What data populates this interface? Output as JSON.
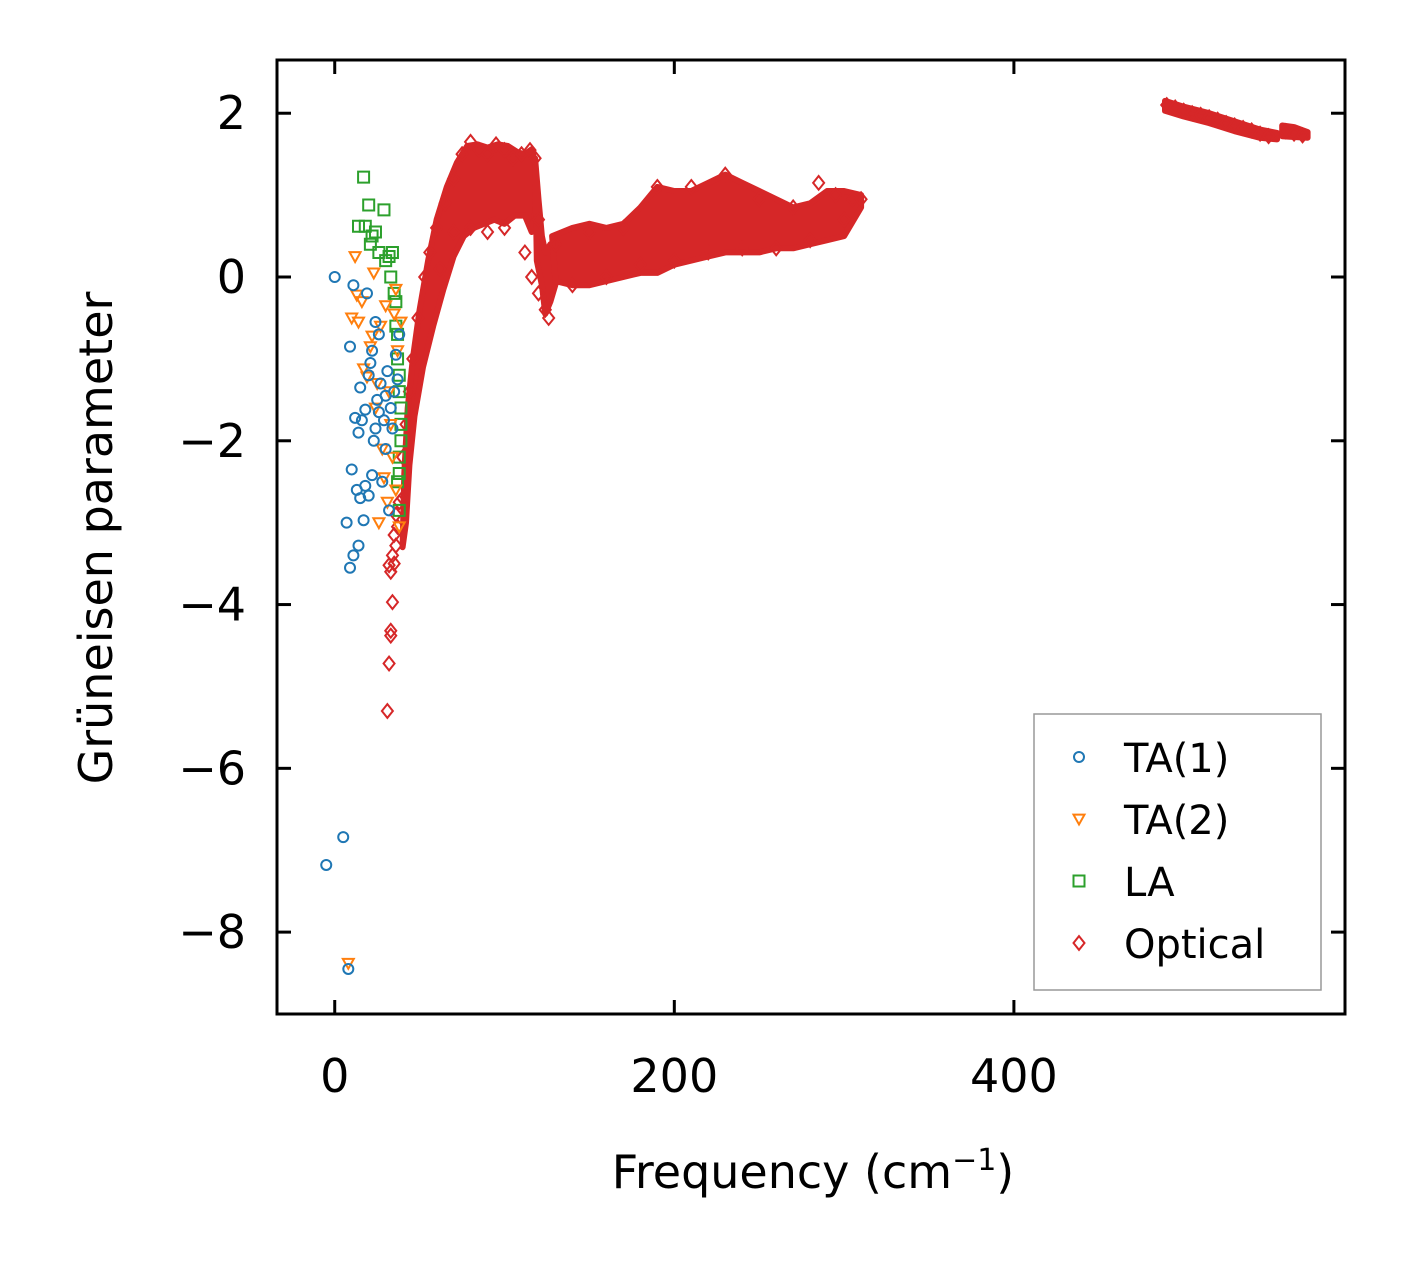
{
  "chart_data": {
    "type": "scatter",
    "title": "",
    "xlabel": "Frequency (cm",
    "xlabel_sup": "−1",
    "xlabel_close": ")",
    "ylabel": "Grüneisen parameter",
    "xlim": [
      -34,
      595
    ],
    "ylim": [
      -9.0,
      2.65
    ],
    "xticks": [
      {
        "value": 0,
        "label": "0"
      },
      {
        "value": 200,
        "label": "200"
      },
      {
        "value": 400,
        "label": "400"
      }
    ],
    "yticks": [
      {
        "value": 2,
        "label": "2"
      },
      {
        "value": 0,
        "label": "0"
      },
      {
        "value": -2,
        "label": "−2"
      },
      {
        "value": -4,
        "label": "−4"
      },
      {
        "value": -6,
        "label": "−6"
      },
      {
        "value": -8,
        "label": "−8"
      }
    ],
    "legend_position": "bottom-right",
    "series": [
      {
        "name": "TA(1)",
        "marker": "circle",
        "color": "#1f77b4",
        "points": [
          [
            0,
            0
          ],
          [
            -5,
            -7.18
          ],
          [
            5,
            -6.84
          ],
          [
            8,
            -8.45
          ],
          [
            9,
            -3.55
          ],
          [
            11,
            -3.4
          ],
          [
            14,
            -3.28
          ],
          [
            17,
            -2.97
          ],
          [
            7,
            -3.0
          ],
          [
            10,
            -2.35
          ],
          [
            13,
            -2.6
          ],
          [
            15,
            -2.7
          ],
          [
            18,
            -2.55
          ],
          [
            20,
            -2.67
          ],
          [
            22,
            -2.42
          ],
          [
            9,
            -0.85
          ],
          [
            11,
            -0.1
          ],
          [
            15,
            -1.35
          ],
          [
            16,
            -1.75
          ],
          [
            14,
            -1.9
          ],
          [
            18,
            -1.62
          ],
          [
            12,
            -1.72
          ],
          [
            20,
            -1.2
          ],
          [
            22,
            -0.9
          ],
          [
            24,
            -0.55
          ],
          [
            26,
            -0.7
          ],
          [
            19,
            -0.2
          ],
          [
            25,
            -1.5
          ],
          [
            27,
            -1.3
          ],
          [
            29,
            -1.75
          ],
          [
            30,
            -2.1
          ],
          [
            31,
            -1.15
          ],
          [
            33,
            -1.6
          ],
          [
            35,
            -1.4
          ],
          [
            36,
            -0.95
          ],
          [
            38,
            -0.7
          ],
          [
            23,
            -2.0
          ],
          [
            28,
            -2.5
          ],
          [
            32,
            -2.85
          ],
          [
            21,
            -1.05
          ],
          [
            34,
            -1.85
          ],
          [
            37,
            -1.25
          ],
          [
            26,
            -1.65
          ],
          [
            30,
            -1.45
          ],
          [
            24,
            -1.85
          ]
        ]
      },
      {
        "name": "TA(2)",
        "marker": "triangle-down",
        "color": "#ff7f0e",
        "points": [
          [
            8,
            -8.38
          ],
          [
            12,
            0.25
          ],
          [
            10,
            -0.5
          ],
          [
            14,
            -0.55
          ],
          [
            16,
            -0.3
          ],
          [
            17,
            -1.12
          ],
          [
            19,
            -1.22
          ],
          [
            21,
            -0.85
          ],
          [
            23,
            0.05
          ],
          [
            25,
            -1.3
          ],
          [
            27,
            -0.6
          ],
          [
            29,
            -2.45
          ],
          [
            31,
            -2.75
          ],
          [
            26,
            -3.0
          ],
          [
            28,
            -2.1
          ],
          [
            33,
            -1.8
          ],
          [
            35,
            -0.45
          ],
          [
            37,
            -0.9
          ],
          [
            24,
            -1.6
          ],
          [
            30,
            -0.35
          ],
          [
            32,
            -1.4
          ],
          [
            34,
            -2.2
          ],
          [
            36,
            -2.6
          ],
          [
            38,
            -3.05
          ],
          [
            13,
            -0.22
          ],
          [
            22,
            -0.72
          ],
          [
            36,
            -0.15
          ],
          [
            39,
            -0.55
          ]
        ]
      },
      {
        "name": "LA",
        "marker": "square",
        "color": "#2ca02c",
        "points": [
          [
            17,
            1.22
          ],
          [
            14,
            0.62
          ],
          [
            18,
            0.62
          ],
          [
            20,
            0.88
          ],
          [
            22,
            0.5
          ],
          [
            24,
            0.55
          ],
          [
            21,
            0.4
          ],
          [
            29,
            0.82
          ],
          [
            26,
            0.3
          ],
          [
            30,
            0.2
          ],
          [
            32,
            0.25
          ],
          [
            34,
            0.3
          ],
          [
            33,
            0.0
          ],
          [
            35,
            -0.2
          ],
          [
            36,
            -0.6
          ],
          [
            37,
            -1.0
          ],
          [
            38,
            -1.4
          ],
          [
            39,
            -1.8
          ],
          [
            38,
            -2.2
          ],
          [
            37,
            -2.5
          ],
          [
            38,
            -2.85
          ],
          [
            36,
            -0.3
          ],
          [
            37,
            -0.7
          ],
          [
            38,
            -1.2
          ],
          [
            39,
            -1.6
          ],
          [
            39,
            -2.0
          ],
          [
            38,
            -2.4
          ]
        ]
      },
      {
        "name": "Optical",
        "marker": "diamond",
        "color": "#d62728",
        "points": [
          [
            31,
            -5.3
          ],
          [
            32,
            -4.72
          ],
          [
            33,
            -4.32
          ],
          [
            33,
            -4.38
          ],
          [
            34,
            -3.97
          ],
          [
            33,
            -3.6
          ],
          [
            32,
            -3.52
          ],
          [
            35,
            -3.5
          ],
          [
            34,
            -3.4
          ],
          [
            36,
            -3.28
          ],
          [
            35,
            -3.15
          ],
          [
            37,
            -3.05
          ],
          [
            36,
            -2.9
          ],
          [
            38,
            -2.75
          ],
          [
            40,
            -2.7
          ],
          [
            40,
            -2.2
          ],
          [
            42,
            -1.8
          ],
          [
            44,
            -1.4
          ],
          [
            46,
            -1.0
          ],
          [
            49,
            -0.5
          ],
          [
            53,
            0.0
          ],
          [
            56,
            0.3
          ],
          [
            60,
            0.6
          ],
          [
            65,
            0.9
          ],
          [
            70,
            1.2
          ],
          [
            75,
            1.5
          ],
          [
            80,
            1.65
          ],
          [
            85,
            1.55
          ],
          [
            90,
            1.5
          ],
          [
            95,
            1.62
          ],
          [
            100,
            1.55
          ],
          [
            105,
            1.45
          ],
          [
            110,
            1.5
          ],
          [
            115,
            1.55
          ],
          [
            118,
            1.45
          ],
          [
            120,
            0.7
          ],
          [
            124,
            -0.4
          ],
          [
            126,
            -0.5
          ],
          [
            130,
            0.4
          ],
          [
            150,
            0.55
          ],
          [
            170,
            0.6
          ],
          [
            190,
            1.1
          ],
          [
            210,
            1.1
          ],
          [
            230,
            1.25
          ],
          [
            250,
            0.95
          ],
          [
            270,
            0.85
          ],
          [
            285,
            1.15
          ],
          [
            295,
            1.0
          ],
          [
            305,
            0.95
          ],
          [
            310,
            0.95
          ],
          [
            62,
            0.1
          ],
          [
            70,
            0.55
          ],
          [
            80,
            0.6
          ],
          [
            90,
            0.55
          ],
          [
            100,
            0.6
          ],
          [
            112,
            0.3
          ],
          [
            116,
            0.0
          ],
          [
            120,
            -0.2
          ],
          [
            140,
            -0.1
          ],
          [
            160,
            0.0
          ],
          [
            180,
            0.15
          ],
          [
            200,
            0.2
          ],
          [
            220,
            0.3
          ],
          [
            240,
            0.35
          ],
          [
            260,
            0.35
          ],
          [
            280,
            0.45
          ],
          [
            300,
            0.7
          ],
          [
            490,
            2.1
          ],
          [
            495,
            2.07
          ],
          [
            500,
            2.03
          ],
          [
            505,
            2.0
          ],
          [
            510,
            1.98
          ],
          [
            515,
            1.95
          ],
          [
            520,
            1.92
          ],
          [
            525,
            1.88
          ],
          [
            530,
            1.85
          ],
          [
            535,
            1.82
          ],
          [
            540,
            1.79
          ],
          [
            545,
            1.75
          ],
          [
            550,
            1.72
          ],
          [
            560,
            1.78
          ],
          [
            565,
            1.75
          ],
          [
            570,
            1.73
          ]
        ]
      }
    ],
    "optical_bands": [
      {
        "name": "optical-band-rise",
        "color": "#d62728",
        "upper": [
          [
            40,
            -3.3
          ],
          [
            41,
            -2.4
          ],
          [
            43,
            -1.6
          ],
          [
            46,
            -1.0
          ],
          [
            50,
            -0.4
          ],
          [
            55,
            0.2
          ],
          [
            60,
            0.7
          ],
          [
            66,
            1.1
          ],
          [
            72,
            1.4
          ],
          [
            78,
            1.6
          ],
          [
            84,
            1.62
          ],
          [
            90,
            1.58
          ],
          [
            96,
            1.62
          ],
          [
            102,
            1.6
          ],
          [
            108,
            1.52
          ],
          [
            112,
            1.5
          ],
          [
            116,
            1.56
          ],
          [
            118,
            1.4
          ],
          [
            119,
            0.9
          ]
        ],
        "lower": [
          [
            119,
            0.9
          ],
          [
            116,
            0.55
          ],
          [
            112,
            0.75
          ],
          [
            106,
            0.75
          ],
          [
            100,
            0.65
          ],
          [
            94,
            0.7
          ],
          [
            88,
            0.65
          ],
          [
            82,
            0.6
          ],
          [
            76,
            0.5
          ],
          [
            70,
            0.25
          ],
          [
            64,
            -0.15
          ],
          [
            58,
            -0.6
          ],
          [
            52,
            -1.1
          ],
          [
            47,
            -1.7
          ],
          [
            44,
            -2.3
          ],
          [
            42,
            -3.0
          ]
        ]
      },
      {
        "name": "optical-band-dip",
        "color": "#d62728",
        "upper": [
          [
            118,
            1.45
          ],
          [
            120,
            0.95
          ],
          [
            122,
            0.5
          ],
          [
            124,
            0.3
          ],
          [
            127,
            0.4
          ],
          [
            132,
            0.45
          ]
        ],
        "lower": [
          [
            132,
            0.05
          ],
          [
            127,
            -0.3
          ],
          [
            124,
            -0.45
          ],
          [
            122,
            -0.1
          ],
          [
            119,
            0.2
          ]
        ]
      },
      {
        "name": "optical-band-plateau",
        "color": "#d62728",
        "upper": [
          [
            128,
            0.5
          ],
          [
            140,
            0.6
          ],
          [
            150,
            0.65
          ],
          [
            160,
            0.6
          ],
          [
            170,
            0.65
          ],
          [
            180,
            0.85
          ],
          [
            190,
            1.1
          ],
          [
            200,
            1.05
          ],
          [
            210,
            1.05
          ],
          [
            220,
            1.15
          ],
          [
            230,
            1.25
          ],
          [
            240,
            1.15
          ],
          [
            250,
            1.05
          ],
          [
            260,
            0.95
          ],
          [
            270,
            0.85
          ],
          [
            280,
            0.9
          ],
          [
            290,
            1.05
          ],
          [
            300,
            1.05
          ],
          [
            310,
            1.0
          ]
        ],
        "lower": [
          [
            310,
            0.85
          ],
          [
            300,
            0.5
          ],
          [
            290,
            0.45
          ],
          [
            280,
            0.4
          ],
          [
            270,
            0.35
          ],
          [
            260,
            0.35
          ],
          [
            250,
            0.3
          ],
          [
            240,
            0.3
          ],
          [
            230,
            0.3
          ],
          [
            220,
            0.25
          ],
          [
            210,
            0.2
          ],
          [
            200,
            0.15
          ],
          [
            190,
            0.05
          ],
          [
            180,
            0.05
          ],
          [
            170,
            0.0
          ],
          [
            160,
            -0.05
          ],
          [
            150,
            -0.1
          ],
          [
            140,
            -0.1
          ],
          [
            130,
            -0.05
          ]
        ]
      },
      {
        "name": "optical-band-high",
        "color": "#d62728",
        "upper": [
          [
            489,
            2.15
          ],
          [
            500,
            2.08
          ],
          [
            515,
            2.0
          ],
          [
            530,
            1.9
          ],
          [
            545,
            1.8
          ],
          [
            555,
            1.76
          ]
        ],
        "lower": [
          [
            555,
            1.68
          ],
          [
            545,
            1.7
          ],
          [
            530,
            1.78
          ],
          [
            515,
            1.88
          ],
          [
            500,
            1.96
          ],
          [
            489,
            2.03
          ]
        ]
      },
      {
        "name": "optical-band-tail",
        "color": "#d62728",
        "upper": [
          [
            558,
            1.85
          ],
          [
            565,
            1.83
          ],
          [
            573,
            1.77
          ]
        ],
        "lower": [
          [
            573,
            1.7
          ],
          [
            565,
            1.71
          ],
          [
            558,
            1.72
          ]
        ]
      }
    ]
  }
}
